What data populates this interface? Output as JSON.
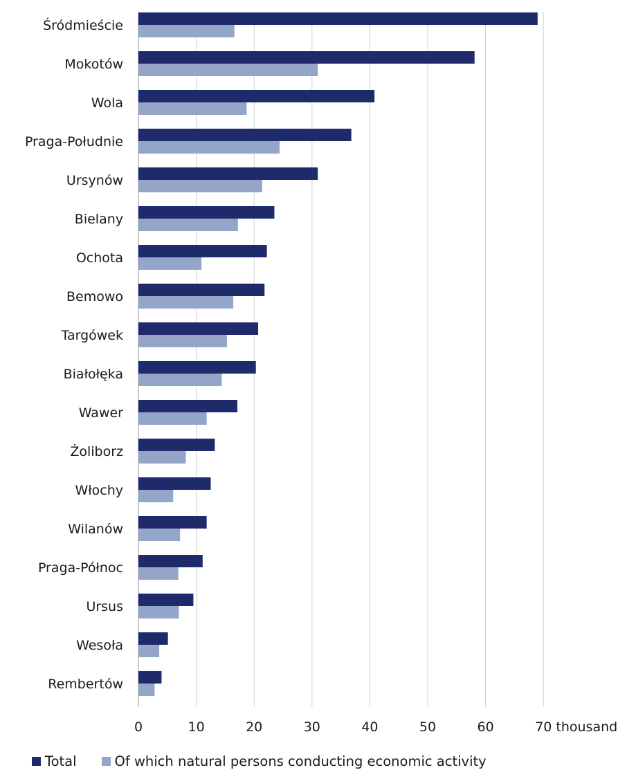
{
  "chart_data": {
    "type": "bar",
    "orientation": "horizontal",
    "categories": [
      "Śródmieście",
      "Mokotów",
      "Wola",
      "Praga-Południe",
      "Ursynów",
      "Bielany",
      "Ochota",
      "Bemowo",
      "Targówek",
      "Białołęka",
      "Wawer",
      "Żoliborz",
      "Włochy",
      "Wilanów",
      "Praga-Północ",
      "Ursus",
      "Wesoła",
      "Rembertów"
    ],
    "series": [
      {
        "name": "Total",
        "color": "#1f2a6b",
        "values": [
          69.0,
          58.1,
          40.8,
          36.8,
          31.0,
          23.5,
          22.2,
          21.8,
          20.7,
          20.3,
          17.1,
          13.2,
          12.5,
          11.8,
          11.1,
          9.5,
          5.1,
          4.0
        ]
      },
      {
        "name": "Of which natural persons conducting economic activity",
        "color": "#93a5c9",
        "values": [
          16.6,
          31.0,
          18.7,
          24.4,
          21.4,
          17.2,
          10.9,
          16.4,
          15.3,
          14.4,
          11.8,
          8.2,
          6.0,
          7.2,
          6.9,
          7.0,
          3.6,
          2.8
        ]
      }
    ],
    "xlim": [
      0,
      70
    ],
    "xticks": [
      0,
      10,
      20,
      30,
      40,
      50,
      60,
      70
    ],
    "xtick_labels": [
      "0",
      "10",
      "20",
      "30",
      "40",
      "50",
      "60",
      "70 thousand"
    ],
    "grid": true,
    "legend_position": "bottom-left"
  }
}
